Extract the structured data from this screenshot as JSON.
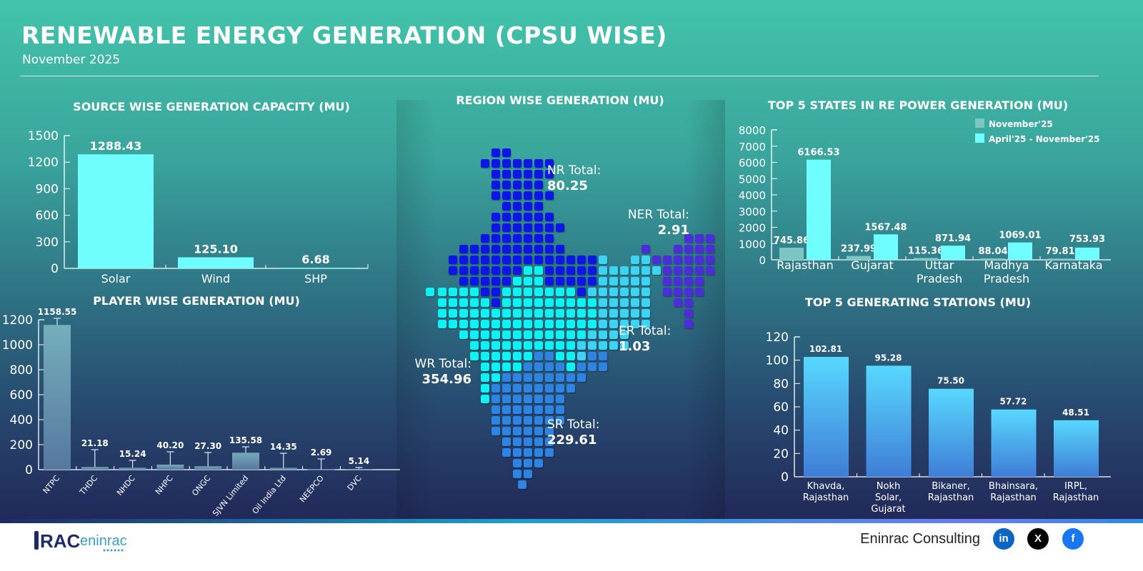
{
  "header": {
    "title": "RENEWABLE ENERGY GENERATION (CPSU WISE)",
    "subtitle": "November 2025"
  },
  "colors": {
    "cyan": "#6ffdfd",
    "nov": "#7cc5c2",
    "player_bar": "#7aa9bd",
    "station_top": "#58d8ff",
    "station_bottom": "#3f7dd6",
    "nr": "#0b14e6",
    "wr": "#0ff2f2",
    "er": "#3ed3f2",
    "sr": "#2f84e3",
    "ner": "#4b2fd8"
  },
  "chart_data": [
    {
      "type": "bar",
      "title": "SOURCE WISE GENERATION CAPACITY (MU)",
      "categories": [
        "Solar",
        "Wind",
        "SHP"
      ],
      "values": [
        1288.43,
        125.1,
        6.68
      ],
      "labels": [
        "1288.43",
        "125.10",
        "6.68"
      ],
      "yticks": [
        "0",
        "300",
        "600",
        "900",
        "1200",
        "1500"
      ],
      "ylim": [
        0,
        1500
      ],
      "grid": false
    },
    {
      "type": "bar",
      "title": "PLAYER WISE GENERATION (MU)",
      "categories": [
        "NTPC",
        "THDC",
        "NHDC",
        "NHPC",
        "ONGC",
        "SJVN Limited",
        "Oil India Ltd",
        "NEEPCO",
        "DVC"
      ],
      "values": [
        1158.55,
        21.18,
        15.24,
        40.2,
        27.3,
        135.58,
        14.35,
        2.69,
        5.14
      ],
      "labels": [
        "1158.55",
        "21.18",
        "15.24",
        "40.20",
        "27.30",
        "135.58",
        "14.35",
        "2.69",
        "5.14"
      ],
      "yticks": [
        "0",
        "200",
        "400",
        "600",
        "800",
        "1000",
        "1200"
      ],
      "ylim": [
        0,
        1200
      ],
      "grid": false,
      "error_bars": true
    },
    {
      "type": "map",
      "title": "REGION WISE GENERATION (MU)",
      "regions": [
        {
          "name": "NR Total:",
          "value": "80.25"
        },
        {
          "name": "NER Total:",
          "value": "2.91"
        },
        {
          "name": "ER Total:",
          "value": "1.03"
        },
        {
          "name": "WR Total:",
          "value": "354.96"
        },
        {
          "name": "SR Total:",
          "value": "229.61"
        }
      ]
    },
    {
      "type": "bar",
      "title": "TOP 5 STATES IN RE POWER GENERATION (MU)",
      "categories": [
        "Rajasthan",
        "Gujarat",
        "Uttar Pradesh",
        "Madhya Pradesh",
        "Karnataka"
      ],
      "series": [
        {
          "name": "November'25",
          "values": [
            745.86,
            237.99,
            115.36,
            88.04,
            79.81
          ],
          "labels": [
            "745.86",
            "237.99",
            "115.36",
            "88.04",
            "79.81"
          ]
        },
        {
          "name": "April'25 - November'25",
          "values": [
            6166.53,
            1567.48,
            871.94,
            1069.01,
            753.93
          ],
          "labels": [
            "6166.53",
            "1567.48",
            "871.94",
            "1069.01",
            "753.93"
          ]
        }
      ],
      "yticks": [
        "0",
        "1000",
        "2000",
        "3000",
        "4000",
        "5000",
        "6000",
        "7000",
        "8000"
      ],
      "ylim": [
        0,
        8000
      ],
      "legend": "top-right",
      "grid": false
    },
    {
      "type": "bar",
      "title": "TOP 5 GENERATING STATIONS (MU)",
      "categories": [
        "Khavda, Rajasthan",
        "Nokh Solar, Gujarat",
        "Bikaner, Rajasthan",
        "Bhainsara, Rajasthan",
        "IRPL, Rajasthan"
      ],
      "values": [
        102.81,
        95.28,
        75.5,
        57.72,
        48.51
      ],
      "labels": [
        "102.81",
        "95.28",
        "75.50",
        "57.72",
        "48.51"
      ],
      "yticks": [
        "0",
        "20",
        "40",
        "60",
        "80",
        "100",
        "120"
      ],
      "ylim": [
        0,
        120
      ],
      "grid": false
    }
  ],
  "footer": {
    "company": "Eninrac Consulting",
    "logo_text": "RAC eninrac",
    "social": [
      {
        "icon": "linkedin-icon",
        "glyph": "in",
        "color": "#0a66c2"
      },
      {
        "icon": "x-icon",
        "glyph": "X",
        "color": "#000000"
      },
      {
        "icon": "facebook-icon",
        "glyph": "f",
        "color": "#1877f2"
      }
    ]
  }
}
